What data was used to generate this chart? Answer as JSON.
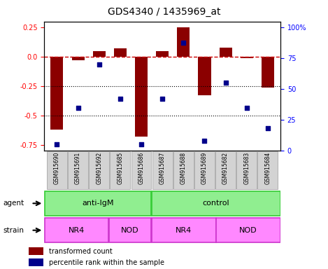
{
  "title": "GDS4340 / 1435969_at",
  "samples": [
    "GSM915690",
    "GSM915691",
    "GSM915692",
    "GSM915685",
    "GSM915686",
    "GSM915687",
    "GSM915688",
    "GSM915689",
    "GSM915682",
    "GSM915683",
    "GSM915684"
  ],
  "bar_values": [
    -0.62,
    -0.03,
    0.05,
    0.07,
    -0.68,
    0.05,
    0.25,
    -0.33,
    0.08,
    -0.01,
    -0.26
  ],
  "scatter_pct": [
    5,
    35,
    70,
    42,
    5,
    42,
    88,
    8,
    55,
    35,
    18
  ],
  "ylim_left": [
    -0.8,
    0.3
  ],
  "ylim_right": [
    0,
    105
  ],
  "yticks_left": [
    0.25,
    0.0,
    -0.25,
    -0.5,
    -0.75
  ],
  "yticks_right": [
    100,
    75,
    50,
    25,
    0
  ],
  "bar_color": "#8B0000",
  "scatter_color": "#00008B",
  "dashed_line_y": 0.0,
  "dashed_line_color": "#CC0000",
  "dotted_lines": [
    -0.25,
    -0.5
  ],
  "dotted_color": "#000000",
  "agent_labels": [
    {
      "text": "anti-IgM",
      "start": 0,
      "end": 4
    },
    {
      "text": "control",
      "start": 5,
      "end": 10
    }
  ],
  "agent_color_light": "#90EE90",
  "agent_color_bright": "#33CC33",
  "strain_labels": [
    {
      "text": "NR4",
      "start": 0,
      "end": 2
    },
    {
      "text": "NOD",
      "start": 3,
      "end": 4
    },
    {
      "text": "NR4",
      "start": 5,
      "end": 7
    },
    {
      "text": "NOD",
      "start": 8,
      "end": 10
    }
  ],
  "strain_color": "#FF88FF",
  "strain_edge_color": "#CC33CC",
  "label_agent": "agent",
  "label_strain": "strain",
  "legend_bar": "transformed count",
  "legend_scatter": "percentile rank within the sample",
  "title_fontsize": 10
}
